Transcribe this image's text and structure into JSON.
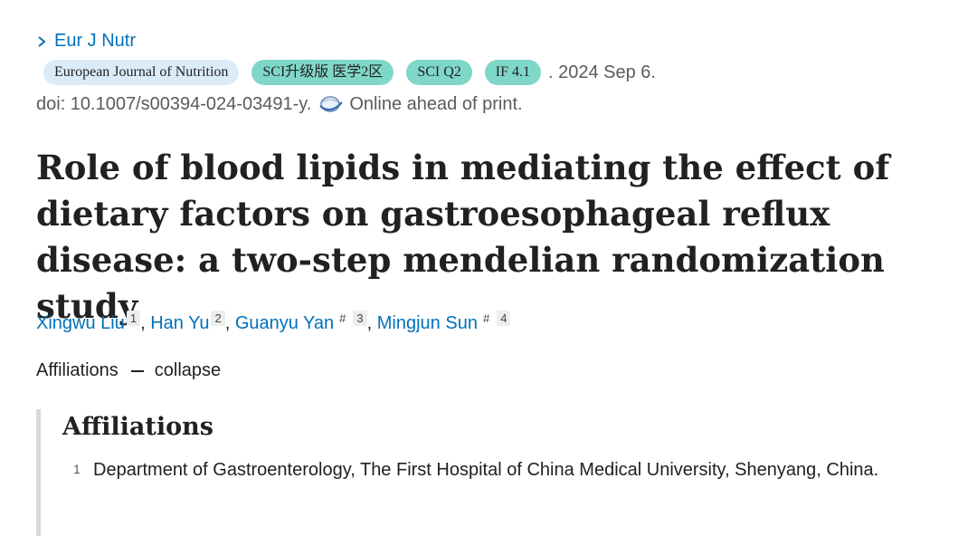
{
  "citation": {
    "journal_link": "Eur J Nutr",
    "badges": {
      "journal": "European Journal of Nutrition",
      "sci_upgrade": "SCI升级版 医学2区",
      "sci_q": "SCI Q2",
      "impact_factor": "IF 4.1"
    },
    "date": ". 2024 Sep 6.",
    "doi": "doi: 10.1007/s00394-024-03491-y.",
    "online_status": "Online ahead of print."
  },
  "title": "Role of blood lipids in mediating the effect of dietary factors on gastroesophageal reflux disease: a two-step mendelian randomization study",
  "authors": [
    {
      "name": "Xingwu Liu",
      "sup": "1",
      "sep": ", "
    },
    {
      "name": "Han Yu",
      "sup": "2",
      "sep": ", "
    },
    {
      "name": "Guanyu Yan",
      "equal": "#",
      "sup": "3",
      "sep": ", "
    },
    {
      "name": "Mingjun Sun",
      "equal": "#",
      "sup": "4",
      "sep": ""
    }
  ],
  "affiliations_toggle": {
    "label": "Affiliations",
    "action": "collapse"
  },
  "affiliations": {
    "heading": "Affiliations",
    "items": [
      {
        "num": "1",
        "text": "Department of Gastroenterology, The First Hospital of China Medical University, Shenyang, China."
      }
    ]
  },
  "icons": {
    "journal_chevron": "chevron-right-icon",
    "online_print": "pubmed-globe-icon",
    "collapse": "minus-icon"
  },
  "colors": {
    "link": "#0071bc",
    "badge_journal": "#dcebf8",
    "badge_teal": "#7fd7c9",
    "affiliation_border": "#d9d9d9"
  }
}
